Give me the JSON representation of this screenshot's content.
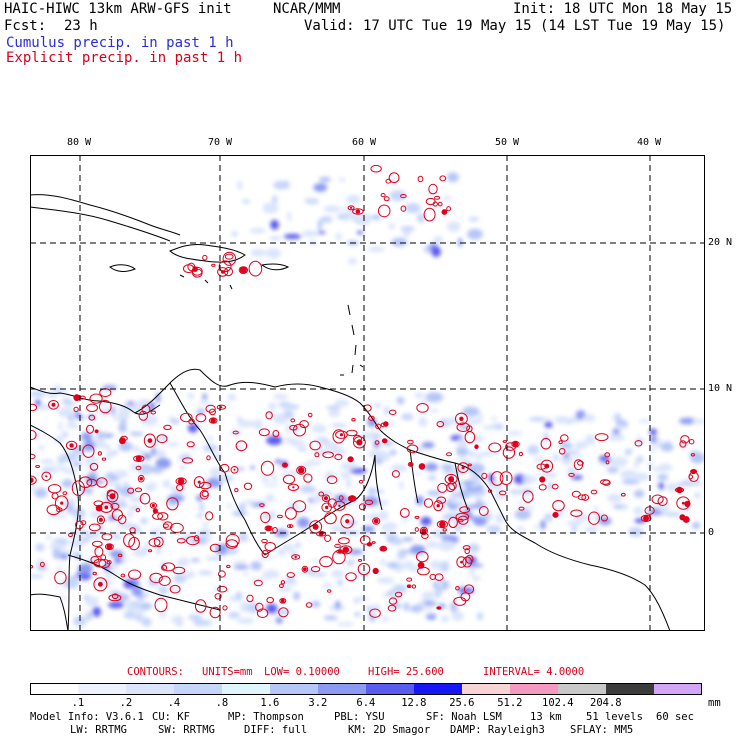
{
  "header": {
    "model_title": "HAIC-HIWC 13km ARW-GFS init",
    "agency": "NCAR/MMM",
    "init_time": "Init: 18 UTC Mon 18 May 15",
    "forecast_label": "Fcst:",
    "forecast_hours": "23 h",
    "valid_time": "Valid: 17 UTC Tue 19 May 15 (14 LST Tue 19 May 15)",
    "legend_cumulus": "Cumulus precip. in past 1 h",
    "legend_explicit": "Explicit precip. in past 1 h",
    "colors": {
      "cumulus": "#2b2bd9",
      "explicit": "#d9001b"
    }
  },
  "map": {
    "longitude_labels": [
      "80 W",
      "70 W",
      "60 W",
      "50 W",
      "40 W"
    ],
    "latitude_labels": [
      "20 N",
      "10 N",
      "0"
    ],
    "colors": {
      "grid": "#000000",
      "coast": "#000000",
      "explicit_contour": "#e0001b"
    }
  },
  "contours": {
    "label": "CONTOURS:",
    "units": "UNITS=mm",
    "low": "LOW= 0.10000",
    "high": "HIGH= 25.600",
    "interval": "INTERVAL= 4.0000",
    "color": "#d9001b"
  },
  "colorbar": {
    "unit": "mm",
    "ticks": [
      ".1",
      ".2",
      ".4",
      ".8",
      "1.6",
      "3.2",
      "6.4",
      "12.8",
      "25.6",
      "51.2",
      "102.4",
      "204.8"
    ],
    "colors": [
      "#ffffff",
      "#eef2ff",
      "#dbe5fb",
      "#c6d6fa",
      "#e0f6fa",
      "#b5c6f7",
      "#8b9bf2",
      "#5a5cf0",
      "#1717f5",
      "#f9d4d4",
      "#f49ac0",
      "#c8c8c8",
      "#3c3c3c",
      "#d3a7f5"
    ]
  },
  "model_info": {
    "line1": [
      "Model Info: V3.6.1",
      "CU: KF",
      "MP: Thompson",
      "PBL: YSU",
      "SF: Noah LSM",
      "13 km",
      "51 levels",
      "60 sec"
    ],
    "line2": [
      "LW: RRTMG",
      "SW: RRTMG",
      "DIFF: full",
      "KM: 2D Smagor",
      "DAMP: Rayleigh3",
      "SFLAY: MM5"
    ]
  }
}
